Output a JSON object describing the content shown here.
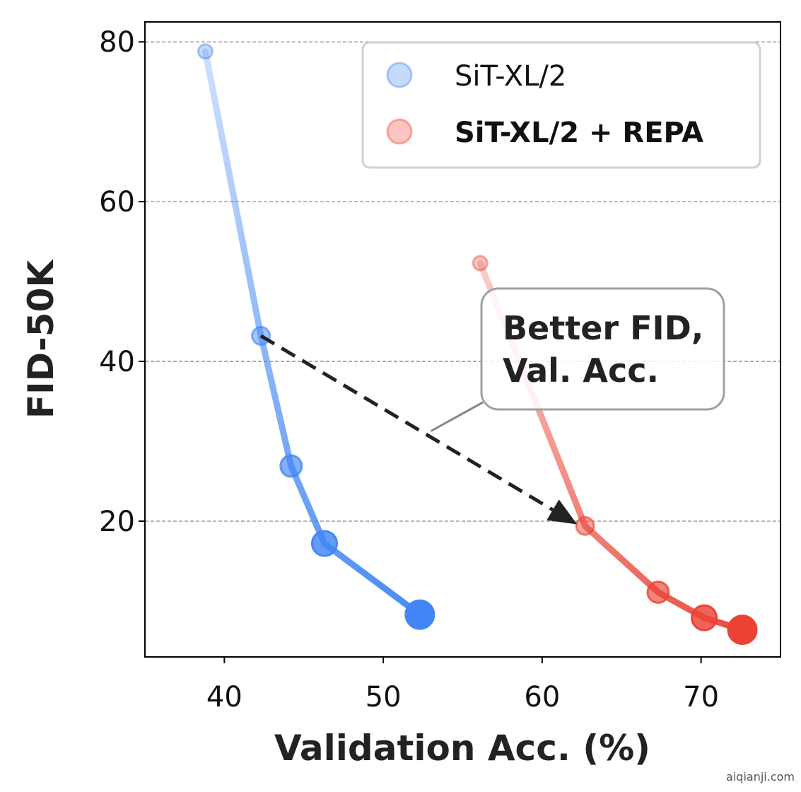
{
  "chart_data": {
    "type": "line",
    "title": "",
    "xlabel": "Validation Acc. (%)",
    "ylabel": "FID-50K",
    "xlim": [
      35,
      75
    ],
    "ylim": [
      3,
      82.5
    ],
    "xticks": [
      40,
      50,
      60,
      70
    ],
    "yticks": [
      20,
      40,
      60,
      80
    ],
    "grid": "y-dashed",
    "legend_position": "top-right",
    "series": [
      {
        "name": "SiT-XL/2",
        "color": "#4285f4",
        "bold_label": false,
        "points": [
          {
            "x": 38.8,
            "y": 78.8
          },
          {
            "x": 42.3,
            "y": 43.2
          },
          {
            "x": 44.2,
            "y": 26.9
          },
          {
            "x": 46.3,
            "y": 17.2
          },
          {
            "x": 52.3,
            "y": 8.3
          }
        ]
      },
      {
        "name": "SiT-XL/2 + REPA",
        "color": "#ea4335",
        "bold_label": true,
        "points": [
          {
            "x": 56.1,
            "y": 52.3
          },
          {
            "x": 62.7,
            "y": 19.4
          },
          {
            "x": 67.3,
            "y": 11.1
          },
          {
            "x": 70.2,
            "y": 7.9
          },
          {
            "x": 72.6,
            "y": 6.4
          }
        ]
      }
    ],
    "annotation": {
      "lines": [
        "Better FID,",
        "Val. Acc."
      ],
      "arrow_from": {
        "x": 42.3,
        "y": 43.2
      },
      "arrow_to": {
        "x": 62.2,
        "y": 19.6
      }
    }
  },
  "watermark": "aiqianji.com"
}
